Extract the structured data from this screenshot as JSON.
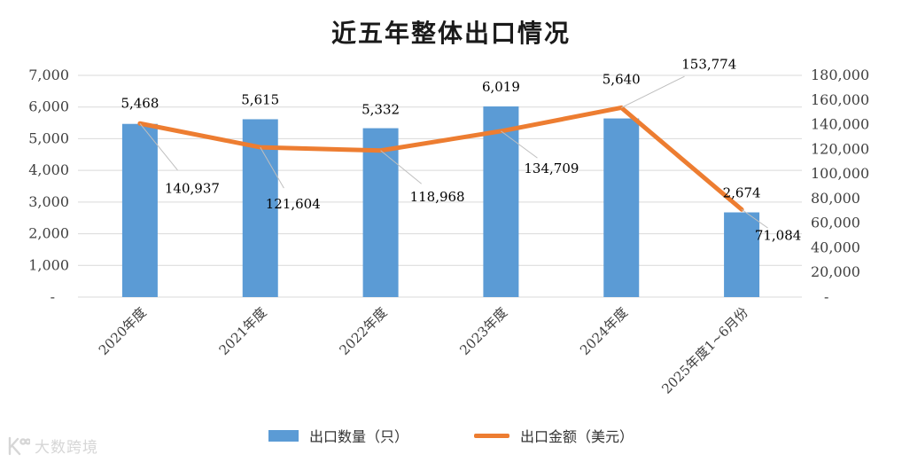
{
  "title": "近五年整体出口情况",
  "legend": {
    "bar_label": "出口数量（只）",
    "line_label": "出口金额（美元）"
  },
  "watermark": {
    "text": "大数跨境"
  },
  "colors": {
    "bar": "#5B9BD5",
    "line": "#ED7D31",
    "grid": "#D9D9D9",
    "axis_text": "#404040",
    "label_text": "#000000",
    "leader": "#BFBFBF",
    "watermark": "#c9c9c9"
  },
  "chart_data": {
    "type": "bar",
    "subtype": "combo-bar-line-dual-axis",
    "title": "近五年整体出口情况",
    "categories": [
      "2020年度",
      "2021年度",
      "2022年度",
      "2023年度",
      "2024年度",
      "2025年度1~6月份"
    ],
    "series": [
      {
        "name": "出口数量（只）",
        "type": "bar",
        "axis": "left",
        "values": [
          5468,
          5615,
          5332,
          6019,
          5640,
          2674
        ],
        "labels": [
          "5,468",
          "5,615",
          "5,332",
          "6,019",
          "5,640",
          "2,674"
        ]
      },
      {
        "name": "出口金额（美元）",
        "type": "line",
        "axis": "right",
        "values": [
          140937,
          121604,
          118968,
          134709,
          153774,
          71084
        ],
        "labels": [
          "140,937",
          "121,604",
          "118,968",
          "134,709",
          "153,774",
          "71,084"
        ]
      }
    ],
    "left_axis": {
      "min": 0,
      "max": 7000,
      "step": 1000,
      "tick_labels": [
        "7,000",
        "6,000",
        "5,000",
        "4,000",
        "3,000",
        "2,000",
        "1,000",
        "-"
      ]
    },
    "right_axis": {
      "min": 0,
      "max": 180000,
      "step": 20000,
      "tick_labels": [
        "180,000",
        "160,000",
        "140,000",
        "120,000",
        "100,000",
        "80,000",
        "60,000",
        "40,000",
        "20,000",
        "-"
      ]
    },
    "grid": true,
    "legend_position": "bottom"
  }
}
